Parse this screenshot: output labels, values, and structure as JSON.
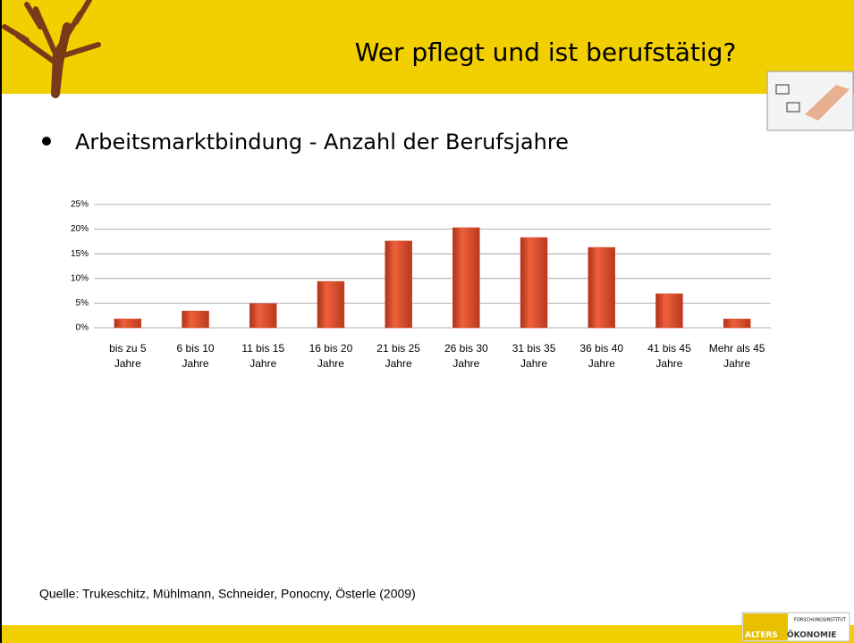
{
  "slide": {
    "title": "Wer pflegt und ist berufstätig?",
    "bullet": "Arbeitsmarktbindung - Anzahl der Berufsjahre",
    "source": "Quelle: Trukeschitz, Mühlmann, Schneider, Ponocny, Österle (2009)",
    "logo": [
      "FORSCHUNGSINSTITUT",
      "ALTERS",
      "ÖKONOMIE"
    ]
  },
  "chart_data": {
    "type": "bar",
    "categories": [
      "bis zu 5 Jahre",
      "6 bis 10 Jahre",
      "11 bis 15 Jahre",
      "16 bis 20 Jahre",
      "21 bis 25 Jahre",
      "26 bis 30 Jahre",
      "31 bis 35 Jahre",
      "36 bis 40 Jahre",
      "41 bis 45 Jahre",
      "Mehr als 45 Jahre"
    ],
    "values": [
      1.8,
      3.4,
      4.9,
      9.4,
      17.6,
      20.3,
      18.3,
      16.3,
      6.9,
      1.8
    ],
    "color": "#d9482a",
    "ylim": [
      0,
      25
    ],
    "yticks": [
      {
        "value": 0,
        "label": "0%"
      },
      {
        "value": 5,
        "label": "5%"
      },
      {
        "value": 10,
        "label": "10%"
      },
      {
        "value": 15,
        "label": "15%"
      },
      {
        "value": 20,
        "label": "20%"
      },
      {
        "value": 25,
        "label": "25%"
      }
    ],
    "grid": true
  }
}
